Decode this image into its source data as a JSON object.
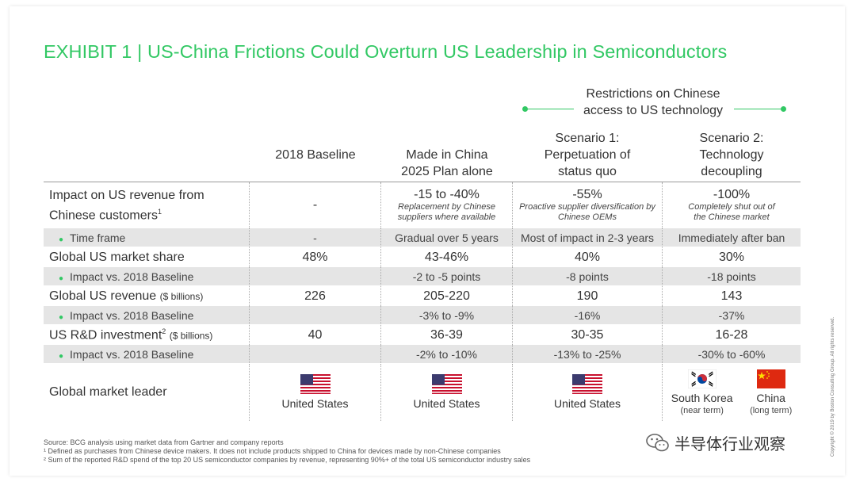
{
  "title": "EXHIBIT 1 | US-China Frictions Could Overturn US Leadership in Semiconductors",
  "restrictions_header": "Restrictions on Chinese access to US technology",
  "columns": [
    {
      "label": "2018 Baseline"
    },
    {
      "label": "Made in China 2025 Plan alone"
    },
    {
      "label": "Scenario 1: Perpetuation of status quo"
    },
    {
      "label": "Scenario 2: Technology decoupling"
    }
  ],
  "rows": {
    "revenue_impact": {
      "label": "Impact on US revenue from Chinese customers",
      "footnote_mark": "1",
      "values": [
        "-",
        "-15 to -40%",
        "-55%",
        "-100%"
      ],
      "notes": [
        "",
        "Replacement by Chinese suppliers where available",
        "Proactive supplier diversification by Chinese OEMs",
        "Completely shut out of the Chinese market"
      ]
    },
    "time_frame": {
      "label": "Time frame",
      "values": [
        "-",
        "Gradual over 5 years",
        "Most of impact in 2-3 years",
        "Immediately after ban"
      ]
    },
    "market_share": {
      "label": "Global US market share",
      "values": [
        "48%",
        "43-46%",
        "40%",
        "30%"
      ]
    },
    "market_share_impact": {
      "label": "Impact vs. 2018 Baseline",
      "values": [
        "",
        "-2 to -5 points",
        "-8 points",
        "-18 points"
      ]
    },
    "us_revenue": {
      "label": "Global US revenue",
      "unit": "($ billions)",
      "values": [
        "226",
        "205-220",
        "190",
        "143"
      ]
    },
    "us_revenue_impact": {
      "label": "Impact vs. 2018 Baseline",
      "values": [
        "",
        "-3% to -9%",
        "-16%",
        "-37%"
      ]
    },
    "rd_investment": {
      "label": "US R&D investment",
      "footnote_mark": "2",
      "unit": "($ billions)",
      "values": [
        "40",
        "36-39",
        "30-35",
        "16-28"
      ]
    },
    "rd_impact": {
      "label": "Impact vs. 2018 Baseline",
      "values": [
        "",
        "-2% to -10%",
        "-13% to -25%",
        "-30% to -60%"
      ]
    },
    "leader": {
      "label": "Global market leader",
      "values": [
        "United States",
        "United States",
        "United States"
      ],
      "scenario2": [
        {
          "country": "South Korea",
          "term": "(near term)"
        },
        {
          "country": "China",
          "term": "(long term)"
        }
      ]
    }
  },
  "footnotes": {
    "source": "Source: BCG analysis using market data from Gartner and company reports",
    "note1": "¹ Defined as purchases from Chinese device makers. It does not include products shipped to China for devices made by non-Chinese companies",
    "note2": "² Sum of the reported R&D spend of the top 20 US semiconductor companies by revenue, representing 90%+ of the total US semiconductor industry sales"
  },
  "copyright": "Copyright © 2019 by Boston Consulting Group. All rights reserved.",
  "watermark": "半导体行业观察",
  "colors": {
    "accent": "#32c864",
    "shade": "#e5e5e5",
    "text": "#333333"
  },
  "icons": [
    "us-flag-icon",
    "korea-flag-icon",
    "china-flag-icon",
    "wechat-icon"
  ]
}
